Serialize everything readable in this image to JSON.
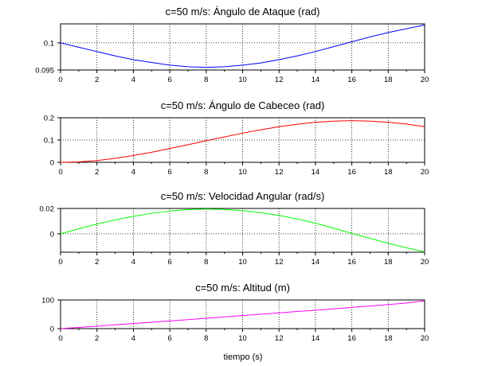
{
  "xlabel": "tiempo (s)",
  "chart_data": [
    {
      "type": "line",
      "title": "c=50 m/s: Ángulo de Ataque (rad)",
      "xlim": [
        0,
        20
      ],
      "ylim": [
        0.095,
        0.1035
      ],
      "xticks": [
        "0",
        "2",
        "4",
        "6",
        "8",
        "10",
        "12",
        "14",
        "16",
        "18",
        "20"
      ],
      "yticks": [
        {
          "v": 0.1,
          "label": "0.1"
        },
        {
          "v": 0.095,
          "label": "0.095"
        }
      ],
      "grid": true,
      "color": "#0000ff",
      "series": [
        {
          "x": [
            0,
            1,
            2,
            3,
            4,
            5,
            6,
            7,
            8,
            9,
            10,
            11,
            12,
            13,
            14,
            15,
            16,
            17,
            18,
            19,
            20
          ],
          "y": [
            0.1,
            0.0992,
            0.0984,
            0.0976,
            0.0969,
            0.0964,
            0.0959,
            0.0956,
            0.0955,
            0.0956,
            0.0959,
            0.0963,
            0.0969,
            0.0976,
            0.0984,
            0.0993,
            0.1002,
            0.1011,
            0.1019,
            0.1026,
            0.1033
          ]
        }
      ]
    },
    {
      "type": "line",
      "title": "c=50 m/s: Ángulo de Cabeceo (rad)",
      "xlim": [
        0,
        20
      ],
      "ylim": [
        0,
        0.2
      ],
      "xticks": [
        "0",
        "2",
        "4",
        "6",
        "8",
        "10",
        "12",
        "14",
        "16",
        "18",
        "20"
      ],
      "yticks": [
        {
          "v": 0.2,
          "label": "0.2"
        },
        {
          "v": 0.1,
          "label": "0.1"
        },
        {
          "v": 0,
          "label": "0"
        }
      ],
      "grid": true,
      "color": "#ff0000",
      "series": [
        {
          "x": [
            0,
            1,
            2,
            3,
            4,
            5,
            6,
            7,
            8,
            9,
            10,
            11,
            12,
            13,
            14,
            15,
            16,
            17,
            18,
            19,
            20
          ],
          "y": [
            0,
            0.002,
            0.008,
            0.018,
            0.031,
            0.045,
            0.062,
            0.079,
            0.097,
            0.114,
            0.131,
            0.146,
            0.16,
            0.171,
            0.18,
            0.185,
            0.187,
            0.185,
            0.18,
            0.172,
            0.16
          ]
        }
      ]
    },
    {
      "type": "line",
      "title": "c=50 m/s: Velocidad Angular (rad/s)",
      "xlim": [
        0,
        20
      ],
      "ylim": [
        -0.0145,
        0.02
      ],
      "xticks": [
        "0",
        "2",
        "4",
        "6",
        "8",
        "10",
        "12",
        "14",
        "16",
        "18",
        "20"
      ],
      "yticks": [
        {
          "v": 0.02,
          "label": "0.02"
        },
        {
          "v": 0,
          "label": "0"
        }
      ],
      "grid": true,
      "color": "#00ff00",
      "series": [
        {
          "x": [
            0,
            1,
            2,
            3,
            4,
            5,
            6,
            7,
            8,
            9,
            10,
            11,
            12,
            13,
            14,
            15,
            16,
            17,
            18,
            19,
            20
          ],
          "y": [
            0,
            0.004,
            0.0077,
            0.011,
            0.0138,
            0.0162,
            0.018,
            0.0191,
            0.0195,
            0.0192,
            0.0183,
            0.0167,
            0.0145,
            0.0117,
            0.0084,
            0.0045,
            0.0003,
            -0.0035,
            -0.0075,
            -0.011,
            -0.0142
          ]
        }
      ]
    },
    {
      "type": "line",
      "title": "c=50 m/s: Altitud (m)",
      "xlim": [
        0,
        20
      ],
      "ylim": [
        0,
        100
      ],
      "xticks": [
        "0",
        "2",
        "4",
        "6",
        "8",
        "10",
        "12",
        "14",
        "16",
        "18",
        "20"
      ],
      "yticks": [
        {
          "v": 100,
          "label": "100"
        },
        {
          "v": 0,
          "label": "0"
        }
      ],
      "grid": true,
      "color": "#ff00ff",
      "series": [
        {
          "x": [
            0,
            1,
            2,
            3,
            4,
            5,
            6,
            7,
            8,
            9,
            10,
            11,
            12,
            13,
            14,
            15,
            16,
            17,
            18,
            19,
            20
          ],
          "y": [
            0,
            4.2,
            8.6,
            13.1,
            17.6,
            22.2,
            26.8,
            31.4,
            36.1,
            40.8,
            45.5,
            50.2,
            54.9,
            59.6,
            64.4,
            69.2,
            74,
            78.9,
            84,
            89.2,
            97
          ]
        }
      ]
    }
  ]
}
